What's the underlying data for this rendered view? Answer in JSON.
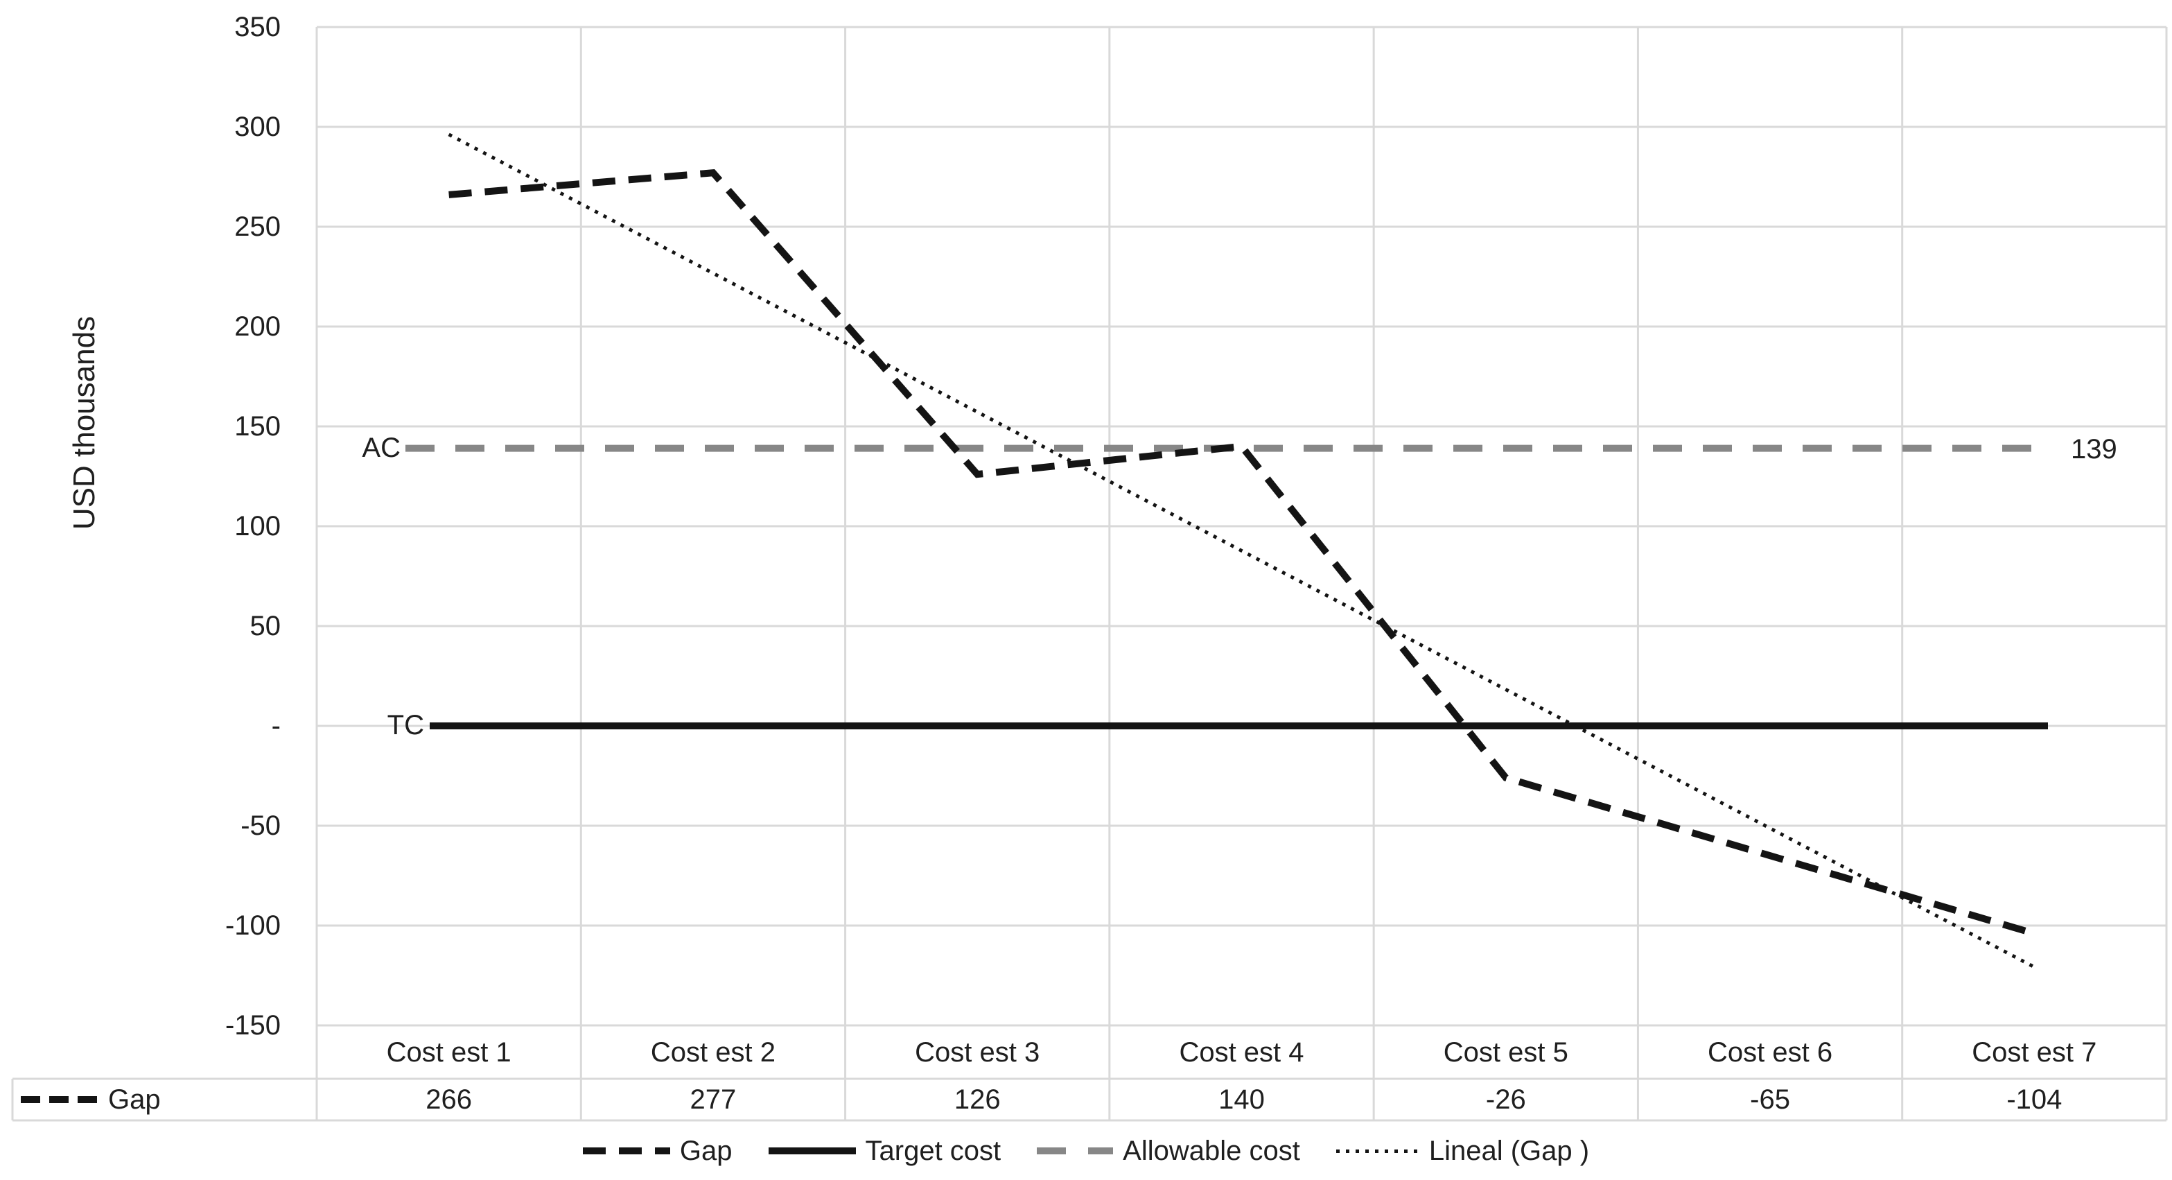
{
  "chart_data": {
    "type": "line",
    "title": "",
    "xlabel": "",
    "ylabel": "USD thousands",
    "categories": [
      "Cost est 1",
      "Cost est 2",
      "Cost est 3",
      "Cost est 4",
      "Cost est 5",
      "Cost est 6",
      "Cost est 7"
    ],
    "series": [
      {
        "name": "Gap",
        "style": "dashed-black",
        "values": [
          266,
          277,
          126,
          140,
          -26,
          -65,
          -104
        ]
      },
      {
        "name": "Target cost",
        "style": "solid-black",
        "constant_value": 0
      },
      {
        "name": "Allowable cost",
        "style": "dashed-gray",
        "constant_value": 139
      },
      {
        "name": "Lineal (Gap )",
        "style": "dotted-black",
        "trend_of": "Gap"
      }
    ],
    "ylim": [
      -150,
      350
    ],
    "y_tick_step": 50,
    "y_tick_labels": [
      "350",
      "300",
      "250",
      "200",
      "150",
      "100",
      "50",
      "-",
      "-50",
      "-100",
      "-150"
    ],
    "grid": true,
    "legend_position": "bottom"
  },
  "annotations": {
    "target_label": "TC",
    "allowable_label": "AC",
    "allowable_value": "139"
  },
  "table": {
    "row_label": "Gap",
    "values": [
      "266",
      "277",
      "126",
      "140",
      "-26",
      "-65",
      "-104"
    ]
  },
  "legend": {
    "items": [
      {
        "label": "Gap",
        "swatch": "dashed-black"
      },
      {
        "label": "Target cost",
        "swatch": "solid-black"
      },
      {
        "label": "Allowable cost",
        "swatch": "dashed-gray"
      },
      {
        "label": "Lineal (Gap )",
        "swatch": "dotted-black"
      }
    ]
  },
  "colors": {
    "line_black": "#141414",
    "line_gray": "#878787",
    "gridline": "#d9d9d9",
    "text": "#1f1f1f",
    "background": "#ffffff"
  }
}
